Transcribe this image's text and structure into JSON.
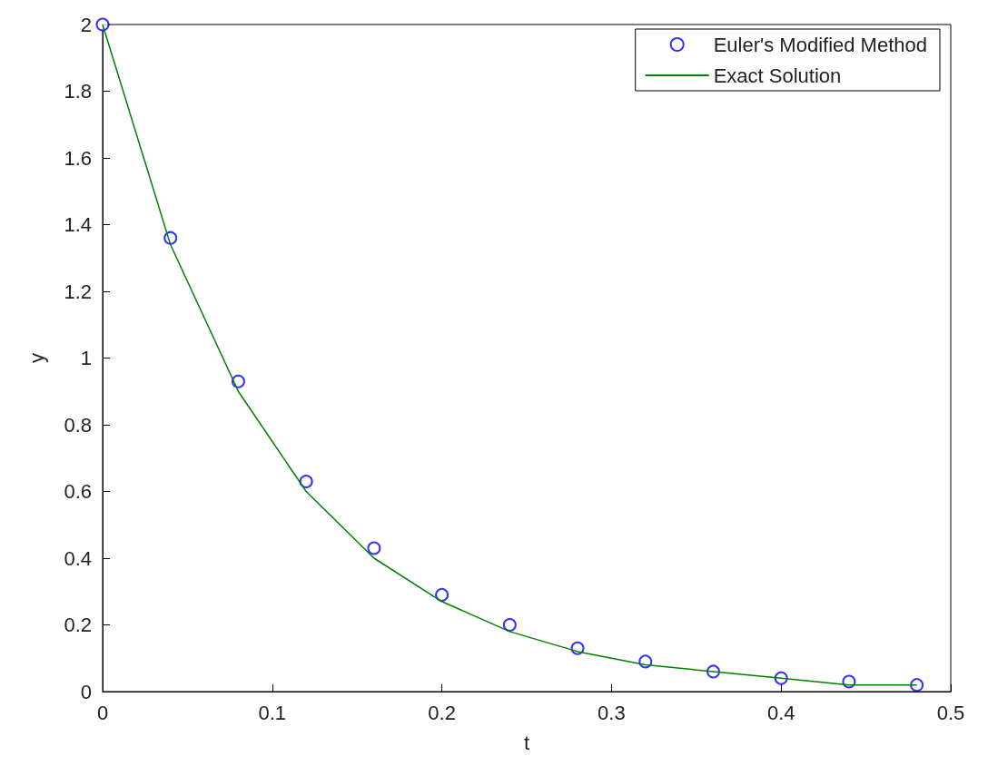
{
  "chart_data": {
    "type": "line",
    "xlabel": "t",
    "ylabel": "y",
    "xlim": [
      0,
      0.5
    ],
    "xticks": [
      0,
      0.1,
      0.2,
      0.3,
      0.4,
      0.5
    ],
    "ylim": [
      0,
      2
    ],
    "yticks": [
      0,
      0.2,
      0.4,
      0.6,
      0.8,
      1,
      1.2,
      1.4,
      1.6,
      1.8,
      2
    ],
    "grid": false,
    "legend": "top right",
    "series": [
      {
        "name": "Euler's Modified Method",
        "type": "scatter",
        "marker": "circle",
        "color": "#0000ff",
        "x": [
          0,
          0.04,
          0.08,
          0.12,
          0.16,
          0.2,
          0.24,
          0.28,
          0.32,
          0.36,
          0.4,
          0.44,
          0.48
        ],
        "values": [
          2,
          1.36,
          0.93,
          0.63,
          0.43,
          0.29,
          0.2,
          0.13,
          0.09,
          0.06,
          0.04,
          0.03,
          0.02
        ]
      },
      {
        "name": "Exact Solution",
        "marker": "none",
        "line_style": "solid",
        "color": "#008000",
        "x": [
          0,
          0.04,
          0.08,
          0.12,
          0.16,
          0.2,
          0.24,
          0.28,
          0.32,
          0.36,
          0.4,
          0.44,
          0.48
        ],
        "values": [
          2,
          1.34,
          0.9,
          0.6,
          0.4,
          0.27,
          0.18,
          0.12,
          0.08,
          0.06,
          0.04,
          0.02,
          0.02
        ]
      }
    ]
  }
}
